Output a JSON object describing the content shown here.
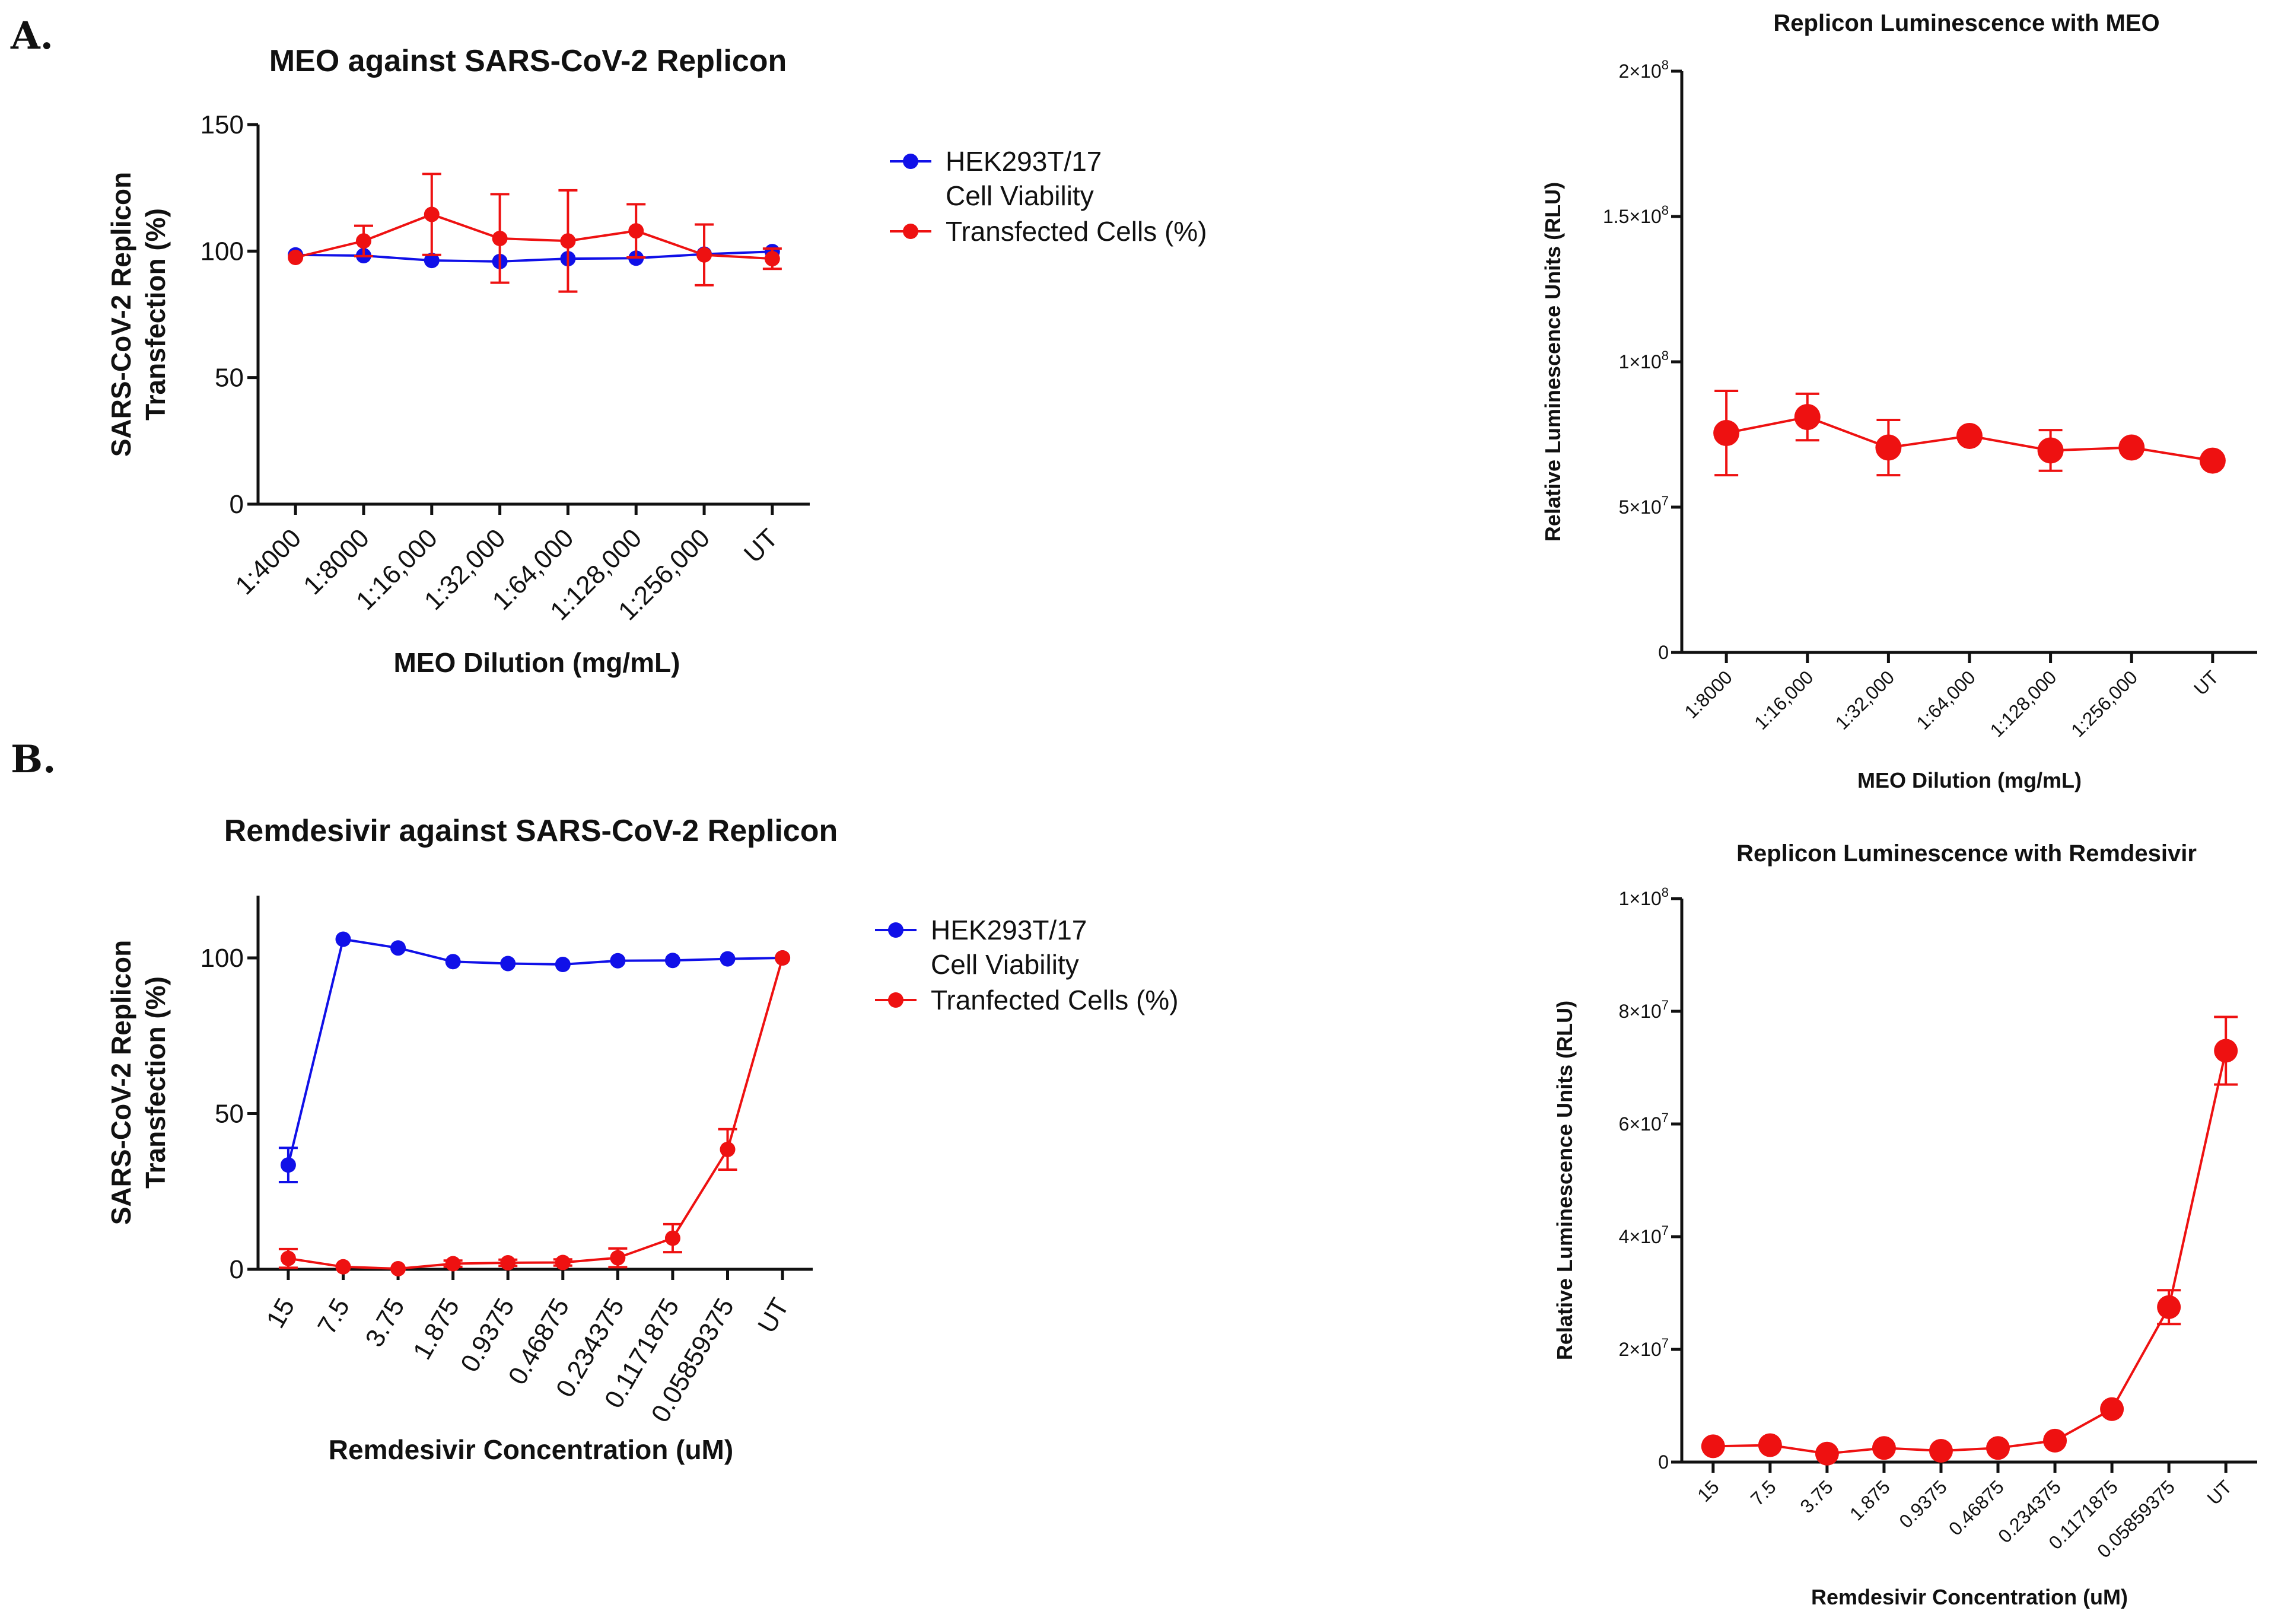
{
  "panels": {
    "a": "A.",
    "b": "B."
  },
  "chart_data": [
    {
      "id": "c1",
      "type": "line",
      "title": "MEO against SARS-CoV-2 Replicon",
      "xlabel": "MEO Dilution (mg/mL)",
      "ylabel_lines": [
        "SARS-CoV-2 Replicon",
        "Transfection (%)"
      ],
      "ylim": [
        0,
        150
      ],
      "yticks": [
        0,
        50,
        100,
        150
      ],
      "ytick_labels": [
        "0",
        "50",
        "100",
        "150"
      ],
      "categories": [
        "1:4000",
        "1:8000",
        "1:16,000",
        "1:32,000",
        "1:64,000",
        "1:128,000",
        "1:256,000",
        "UT"
      ],
      "series": [
        {
          "name": "HEK293T/17 Cell Viability",
          "legend_lines": [
            "HEK293T/17",
            "Cell Viability"
          ],
          "color": "#1010e8",
          "values": [
            98.5,
            98.2,
            96.3,
            95.9,
            97.0,
            97.2,
            98.8,
            99.8
          ],
          "errors": [
            0,
            0,
            0,
            0,
            0,
            0,
            0,
            0
          ]
        },
        {
          "name": "Transfected Cells (%)",
          "legend_lines": [
            "Transfected Cells (%)"
          ],
          "color": "#ee1111",
          "values": [
            97.5,
            104.0,
            114.5,
            105.0,
            104.0,
            108.0,
            98.5,
            97.0
          ],
          "errors": [
            0,
            6,
            16,
            17.5,
            20,
            10.5,
            12,
            4
          ]
        }
      ]
    },
    {
      "id": "c2",
      "type": "line",
      "title": "Replicon Luminescence with MEO",
      "xlabel": "MEO Dilution (mg/mL)",
      "ylabel": "Relative Luminescence Units (RLU)",
      "ylim": [
        0,
        200000000
      ],
      "yticks": [
        0,
        50000000,
        100000000,
        150000000,
        200000000
      ],
      "ytick_labels": [
        {
          "base": "0",
          "exp": ""
        },
        {
          "base": "5×10",
          "exp": "7"
        },
        {
          "base": "1×10",
          "exp": "8"
        },
        {
          "base": "1.5×10",
          "exp": "8"
        },
        {
          "base": "2×10",
          "exp": "8"
        }
      ],
      "categories": [
        "1:8000",
        "1:16,000",
        "1:32,000",
        "1:64,000",
        "1:128,000",
        "1:256,000",
        "UT"
      ],
      "series": [
        {
          "name": "RLU",
          "color": "#ee1111",
          "values": [
            75500000,
            81000000,
            70500000,
            74500000,
            69500000,
            70500000,
            66000000
          ],
          "errors": [
            14500000,
            8000000,
            9500000,
            1000000,
            7000000,
            1000000,
            1000000
          ]
        }
      ]
    },
    {
      "id": "c3",
      "type": "line",
      "title": "Remdesivir against SARS-CoV-2 Replicon",
      "xlabel": "Remdesivir Concentration (uM)",
      "ylabel_lines": [
        "SARS-CoV-2 Replicon",
        "Transfection (%)"
      ],
      "ylim": [
        0,
        120
      ],
      "yticks": [
        0,
        50,
        100
      ],
      "ytick_labels": [
        "0",
        "50",
        "100"
      ],
      "categories": [
        "15",
        "7.5",
        "3.75",
        "1.875",
        "0.9375",
        "0.46875",
        "0.234375",
        "0.1171875",
        "0.05859375",
        "UT"
      ],
      "series": [
        {
          "name": "HEK293T/17 Cell Viability",
          "legend_lines": [
            "HEK293T/17",
            "Cell Viability"
          ],
          "color": "#1010e8",
          "values": [
            33.5,
            106.0,
            103.2,
            98.8,
            98.2,
            97.9,
            99.1,
            99.2,
            99.7,
            100.0
          ],
          "errors": [
            5.5,
            0,
            0,
            0,
            0,
            0,
            0,
            0,
            0,
            0
          ]
        },
        {
          "name": "Tranfected Cells (%)",
          "legend_lines": [
            "Tranfected Cells (%)"
          ],
          "color": "#ee1111",
          "values": [
            3.5,
            0.8,
            0.2,
            1.8,
            2.1,
            2.2,
            3.7,
            10.0,
            38.5,
            100.0
          ],
          "errors": [
            3,
            0,
            0,
            1,
            1,
            1,
            3,
            4.5,
            6.5,
            0
          ]
        }
      ]
    },
    {
      "id": "c4",
      "type": "line",
      "title": "Replicon Luminescence with Remdesivir",
      "xlabel": "Remdesivir Concentration (uM)",
      "ylabel": "Relative Luminescence Units (RLU)",
      "ylim": [
        0,
        100000000
      ],
      "yticks": [
        0,
        20000000,
        40000000,
        60000000,
        80000000,
        100000000
      ],
      "ytick_labels": [
        {
          "base": "0",
          "exp": ""
        },
        {
          "base": "2×10",
          "exp": "7"
        },
        {
          "base": "4×10",
          "exp": "7"
        },
        {
          "base": "6×10",
          "exp": "7"
        },
        {
          "base": "8×10",
          "exp": "7"
        },
        {
          "base": "1×10",
          "exp": "8"
        }
      ],
      "categories": [
        "15",
        "7.5",
        "3.75",
        "1.875",
        "0.9375",
        "0.46875",
        "0.234375",
        "0.1171875",
        "0.05859375",
        "UT"
      ],
      "series": [
        {
          "name": "RLU",
          "color": "#ee1111",
          "values": [
            2800000,
            3000000,
            1500000,
            2500000,
            2000000,
            2500000,
            3800000,
            9400000,
            27500000,
            73000000
          ],
          "errors": [
            0,
            0,
            0,
            0,
            0,
            0,
            0,
            0,
            3000000,
            6000000
          ]
        }
      ]
    }
  ]
}
